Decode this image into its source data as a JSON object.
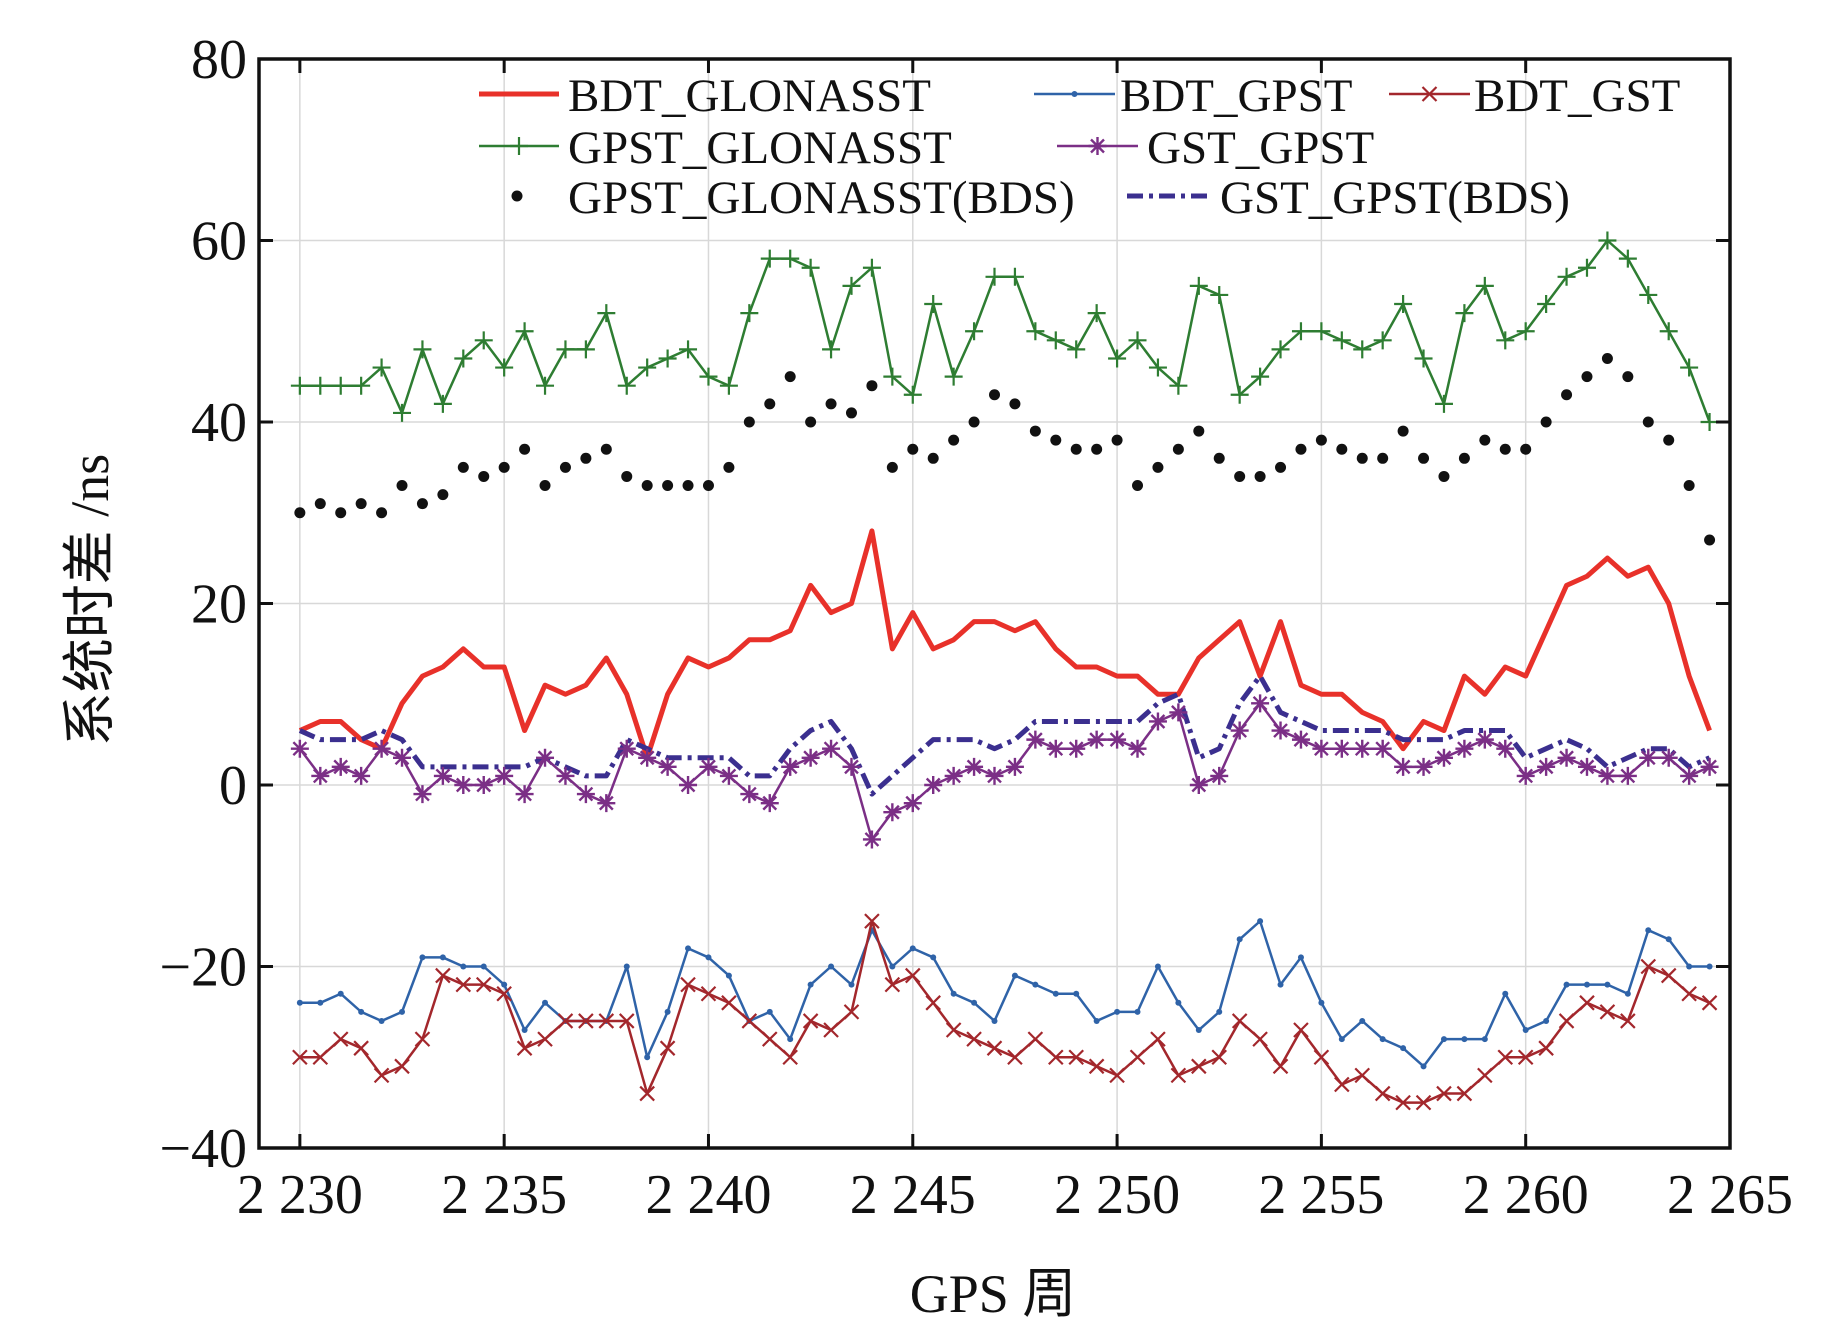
{
  "chart_data": {
    "type": "line",
    "title": "",
    "xlabel": "GPS 周",
    "ylabel": "系统时差 /ns",
    "xlim": [
      2229,
      2265
    ],
    "ylim": [
      -40,
      80
    ],
    "grid": true,
    "legend_position": "top",
    "x_ticks": [
      2230,
      2235,
      2240,
      2245,
      2250,
      2255,
      2260,
      2265
    ],
    "x_tick_labels": [
      "2 230",
      "2 235",
      "2 240",
      "2 245",
      "2 250",
      "2 255",
      "2 260",
      "2 265"
    ],
    "y_ticks": [
      -40,
      -20,
      0,
      20,
      40,
      60,
      80
    ],
    "y_tick_labels": [
      "−40",
      "−20",
      "0",
      "20",
      "40",
      "60",
      "80"
    ],
    "x_start": 2230,
    "x_step": 0.5,
    "series": [
      {
        "name": "BDT_GLONASST",
        "color": "#e8312a",
        "marker": "none",
        "style": "solid-thick",
        "values": [
          6,
          7,
          7,
          5,
          4,
          9,
          12,
          13,
          15,
          13,
          13,
          6,
          11,
          10,
          11,
          14,
          10,
          3,
          10,
          14,
          13,
          14,
          16,
          16,
          17,
          22,
          19,
          20,
          28,
          15,
          19,
          15,
          16,
          18,
          18,
          17,
          18,
          15,
          13,
          13,
          12,
          12,
          10,
          10,
          14,
          16,
          18,
          12,
          18,
          11,
          10,
          10,
          8,
          7,
          4,
          7,
          6,
          12,
          10,
          13,
          12,
          17,
          22,
          23,
          25,
          23,
          24,
          20,
          12,
          6
        ]
      },
      {
        "name": "BDT_GPST",
        "color": "#2f63a8",
        "marker": "dot",
        "style": "solid",
        "values": [
          -24,
          -24,
          -23,
          -25,
          -26,
          -25,
          -19,
          -19,
          -20,
          -20,
          -22,
          -27,
          -24,
          -26,
          -26,
          -26,
          -20,
          -30,
          -25,
          -18,
          -19,
          -21,
          -26,
          -25,
          -28,
          -22,
          -20,
          -22,
          -16,
          -20,
          -18,
          -19,
          -23,
          -24,
          -26,
          -21,
          -22,
          -23,
          -23,
          -26,
          -25,
          -25,
          -20,
          -24,
          -27,
          -25,
          -17,
          -15,
          -22,
          -19,
          -24,
          -28,
          -26,
          -28,
          -29,
          -31,
          -28,
          -28,
          -28,
          -23,
          -27,
          -26,
          -22,
          -22,
          -22,
          -23,
          -16,
          -17,
          -20,
          -20
        ]
      },
      {
        "name": "BDT_GST",
        "color": "#a3272c",
        "marker": "x",
        "style": "solid",
        "values": [
          -30,
          -30,
          -28,
          -29,
          -32,
          -31,
          -28,
          -21,
          -22,
          -22,
          -23,
          -29,
          -28,
          -26,
          -26,
          -26,
          -26,
          -34,
          -29,
          -22,
          -23,
          -24,
          -26,
          -28,
          -30,
          -26,
          -27,
          -25,
          -15,
          -22,
          -21,
          -24,
          -27,
          -28,
          -29,
          -30,
          -28,
          -30,
          -30,
          -31,
          -32,
          -30,
          -28,
          -32,
          -31,
          -30,
          -26,
          -28,
          -31,
          -27,
          -30,
          -33,
          -32,
          -34,
          -35,
          -35,
          -34,
          -34,
          -32,
          -30,
          -30,
          -29,
          -26,
          -24,
          -25,
          -26,
          -20,
          -21,
          -23,
          -24
        ]
      },
      {
        "name": "GPST_GLONASST",
        "color": "#2e7d32",
        "marker": "plus",
        "style": "solid",
        "values": [
          44,
          44,
          44,
          44,
          46,
          41,
          48,
          42,
          47,
          49,
          46,
          50,
          44,
          48,
          48,
          52,
          44,
          46,
          47,
          48,
          45,
          44,
          52,
          58,
          58,
          57,
          48,
          55,
          57,
          45,
          43,
          53,
          45,
          50,
          56,
          56,
          50,
          49,
          48,
          52,
          47,
          49,
          46,
          44,
          55,
          54,
          43,
          45,
          48,
          50,
          50,
          49,
          48,
          49,
          53,
          47,
          42,
          52,
          55,
          49,
          50,
          53,
          56,
          57,
          60,
          58,
          54,
          50,
          46,
          40
        ]
      },
      {
        "name": "GST_GPST",
        "color": "#7b2f86",
        "marker": "asterisk",
        "style": "solid",
        "values": [
          4,
          1,
          2,
          1,
          4,
          3,
          -1,
          1,
          0,
          0,
          1,
          -1,
          3,
          1,
          -1,
          -2,
          4,
          3,
          2,
          0,
          2,
          1,
          -1,
          -2,
          2,
          3,
          4,
          2,
          -6,
          -3,
          -2,
          0,
          1,
          2,
          1,
          2,
          5,
          4,
          4,
          5,
          5,
          4,
          7,
          8,
          0,
          1,
          6,
          9,
          6,
          5,
          4,
          4,
          4,
          4,
          2,
          2,
          3,
          4,
          5,
          4,
          1,
          2,
          3,
          2,
          1,
          1,
          3,
          3,
          1,
          2
        ]
      },
      {
        "name": "GPST_GLONASST(BDS)",
        "color": "#111111",
        "marker": "bigdot",
        "style": "none",
        "values": [
          30,
          31,
          30,
          31,
          30,
          33,
          31,
          32,
          35,
          34,
          35,
          37,
          33,
          35,
          36,
          37,
          34,
          33,
          33,
          33,
          33,
          35,
          40,
          42,
          45,
          40,
          42,
          41,
          44,
          35,
          37,
          36,
          38,
          40,
          43,
          42,
          39,
          38,
          37,
          37,
          38,
          33,
          35,
          37,
          39,
          36,
          34,
          34,
          35,
          37,
          38,
          37,
          36,
          36,
          39,
          36,
          34,
          36,
          38,
          37,
          37,
          40,
          43,
          45,
          47,
          45,
          40,
          38,
          33,
          27
        ]
      },
      {
        "name": "GST_GPST(BDS)",
        "color": "#3b2f8f",
        "marker": "none",
        "style": "dashdot",
        "values": [
          6,
          5,
          5,
          5,
          6,
          5,
          2,
          2,
          2,
          2,
          2,
          2,
          3,
          2,
          1,
          1,
          5,
          4,
          3,
          3,
          3,
          3,
          1,
          1,
          4,
          6,
          7,
          4,
          -1,
          1,
          3,
          5,
          5,
          5,
          4,
          5,
          7,
          7,
          7,
          7,
          7,
          7,
          9,
          10,
          3,
          4,
          9,
          12,
          8,
          7,
          6,
          6,
          6,
          6,
          5,
          5,
          5,
          6,
          6,
          6,
          3,
          4,
          5,
          4,
          2,
          3,
          4,
          4,
          2,
          3
        ]
      }
    ]
  }
}
